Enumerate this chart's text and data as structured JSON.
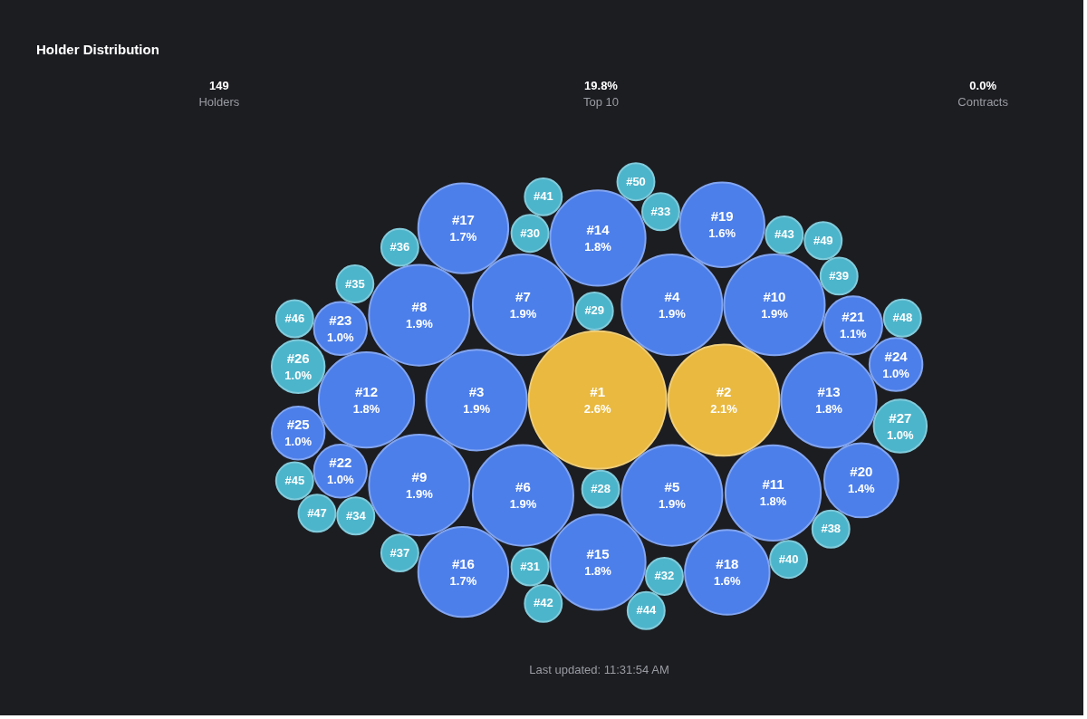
{
  "chart_data": [
    {
      "type": "other",
      "title": "Holder Distribution",
      "categories": [
        "Holders",
        "Top 10",
        "Contracts"
      ],
      "value_labels": [
        "149",
        "19.8%",
        "0.0%"
      ]
    },
    {
      "type": "other",
      "categories": [
        "#1",
        "#2",
        "#3",
        "#4",
        "#5",
        "#6",
        "#7",
        "#8",
        "#9",
        "#10",
        "#11",
        "#12",
        "#13",
        "#14",
        "#15",
        "#16",
        "#17",
        "#18",
        "#19",
        "#20",
        "#21",
        "#22",
        "#23",
        "#24",
        "#25",
        "#26",
        "#27",
        "#28",
        "#29",
        "#30",
        "#31",
        "#32",
        "#33",
        "#34",
        "#35",
        "#36",
        "#37",
        "#38",
        "#39",
        "#40",
        "#41",
        "#42",
        "#43",
        "#44",
        "#45",
        "#46",
        "#47",
        "#48",
        "#49",
        "#50"
      ],
      "values": [
        2.6,
        2.1,
        1.9,
        1.9,
        1.9,
        1.9,
        1.9,
        1.9,
        1.9,
        1.9,
        1.8,
        1.8,
        1.8,
        1.8,
        1.8,
        1.7,
        1.7,
        1.6,
        1.6,
        1.4,
        1.1,
        1.0,
        1.0,
        1.0,
        1.0,
        1.0,
        1.0,
        null,
        null,
        null,
        null,
        null,
        null,
        null,
        null,
        null,
        null,
        null,
        null,
        null,
        null,
        null,
        null,
        null,
        null,
        null,
        null,
        null,
        null,
        null
      ],
      "value_labels": [
        "2.6%",
        "2.1%",
        "1.9%",
        "1.9%",
        "1.9%",
        "1.9%",
        "1.9%",
        "1.9%",
        "1.9%",
        "1.9%",
        "1.8%",
        "1.8%",
        "1.8%",
        "1.8%",
        "1.8%",
        "1.7%",
        "1.7%",
        "1.6%",
        "1.6%",
        "1.4%",
        "1.1%",
        "1.0%",
        "1.0%",
        "1.0%",
        "1.0%",
        "1.0%",
        "1.0%",
        null,
        null,
        null,
        null,
        null,
        null,
        null,
        null,
        null,
        null,
        null,
        null,
        null,
        null,
        null,
        null,
        null,
        null,
        null,
        null,
        null,
        null,
        null
      ],
      "colors": [
        "#e9b940",
        "#e9b940",
        "#4d7fea",
        "#4d7fea",
        "#4d7fea",
        "#4d7fea",
        "#4d7fea",
        "#4d7fea",
        "#4d7fea",
        "#4d7fea",
        "#4d7fea",
        "#4d7fea",
        "#4d7fea",
        "#4d7fea",
        "#4d7fea",
        "#4d7fea",
        "#4d7fea",
        "#4d7fea",
        "#4d7fea",
        "#4d7fea",
        "#4d7fea",
        "#4d7fea",
        "#4d7fea",
        "#4d7fea",
        "#4d7fea",
        "#4db5cb",
        "#4db5cb",
        "#4db5cb",
        "#4db5cb",
        "#4db5cb",
        "#4db5cb",
        "#4db5cb",
        "#4db5cb",
        "#4db5cb",
        "#4db5cb",
        "#4db5cb",
        "#4db5cb",
        "#4db5cb",
        "#4db5cb",
        "#4db5cb",
        "#4db5cb",
        "#4db5cb",
        "#4db5cb",
        "#4db5cb",
        "#4db5cb",
        "#4db5cb",
        "#4db5cb",
        "#4db5cb",
        "#4db5cb",
        "#4db5cb"
      ],
      "annotations": [
        "Last updated: 11:31:54 AM"
      ]
    }
  ]
}
